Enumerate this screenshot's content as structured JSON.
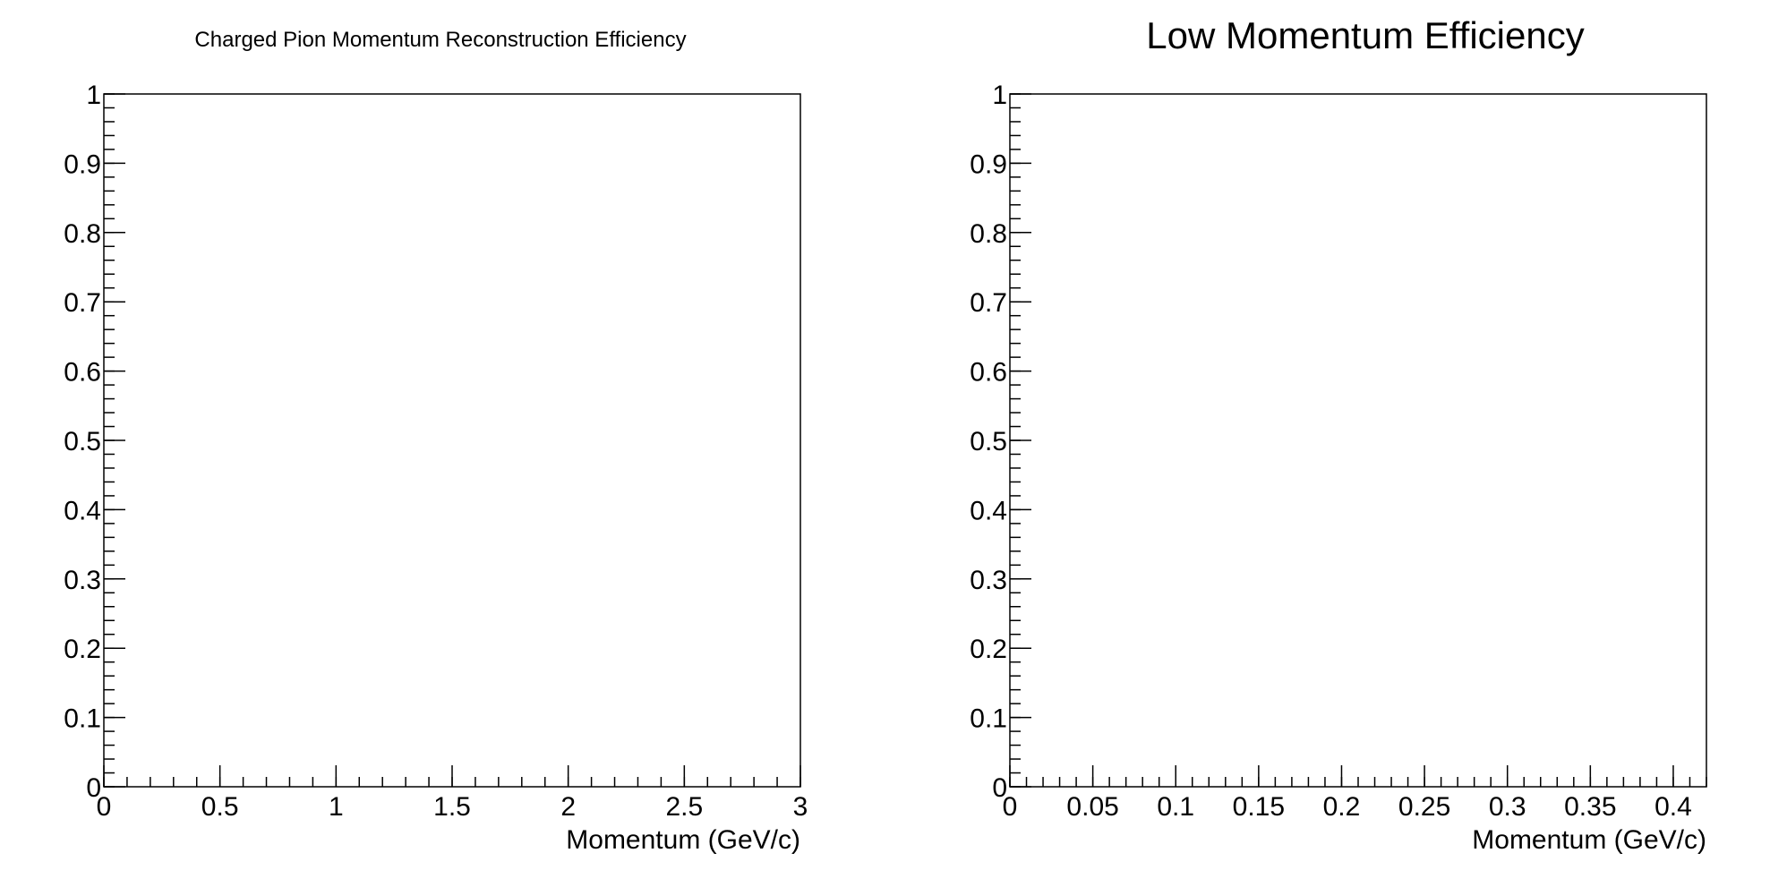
{
  "chart_data": [
    {
      "type": "line",
      "title": "Charged Pion Momentum Reconstruction Efficiency",
      "xlabel": "Momentum (GeV/c)",
      "ylabel": "",
      "xlim": [
        0,
        3
      ],
      "ylim": [
        0,
        1
      ],
      "x_major_ticks": [
        0,
        0.5,
        1,
        1.5,
        2,
        2.5,
        3
      ],
      "x_tick_labels": [
        "0",
        "0.5",
        "1",
        "1.5",
        "2",
        "2.5",
        "3"
      ],
      "x_minor_step": 0.1,
      "y_major_ticks": [
        0,
        0.1,
        0.2,
        0.3,
        0.4,
        0.5,
        0.6,
        0.7,
        0.8,
        0.9,
        1
      ],
      "y_tick_labels": [
        "0",
        "0.1",
        "0.2",
        "0.3",
        "0.4",
        "0.5",
        "0.6",
        "0.7",
        "0.8",
        "0.9",
        "1"
      ],
      "y_minor_step": 0.02,
      "series": [],
      "grid": false
    },
    {
      "type": "line",
      "title": "Low Momentum Efficiency",
      "xlabel": "Momentum (GeV/c)",
      "ylabel": "",
      "xlim": [
        0,
        0.42
      ],
      "ylim": [
        0,
        1
      ],
      "x_major_ticks": [
        0,
        0.05,
        0.1,
        0.15,
        0.2,
        0.25,
        0.3,
        0.35,
        0.4
      ],
      "x_tick_labels": [
        "0",
        "0.05",
        "0.1",
        "0.15",
        "0.2",
        "0.25",
        "0.3",
        "0.35",
        "0.4"
      ],
      "x_minor_step": 0.01,
      "y_major_ticks": [
        0,
        0.1,
        0.2,
        0.3,
        0.4,
        0.5,
        0.6,
        0.7,
        0.8,
        0.9,
        1
      ],
      "y_tick_labels": [
        "0",
        "0.1",
        "0.2",
        "0.3",
        "0.4",
        "0.5",
        "0.6",
        "0.7",
        "0.8",
        "0.9",
        "1"
      ],
      "y_minor_step": 0.02,
      "series": [],
      "grid": false
    }
  ]
}
